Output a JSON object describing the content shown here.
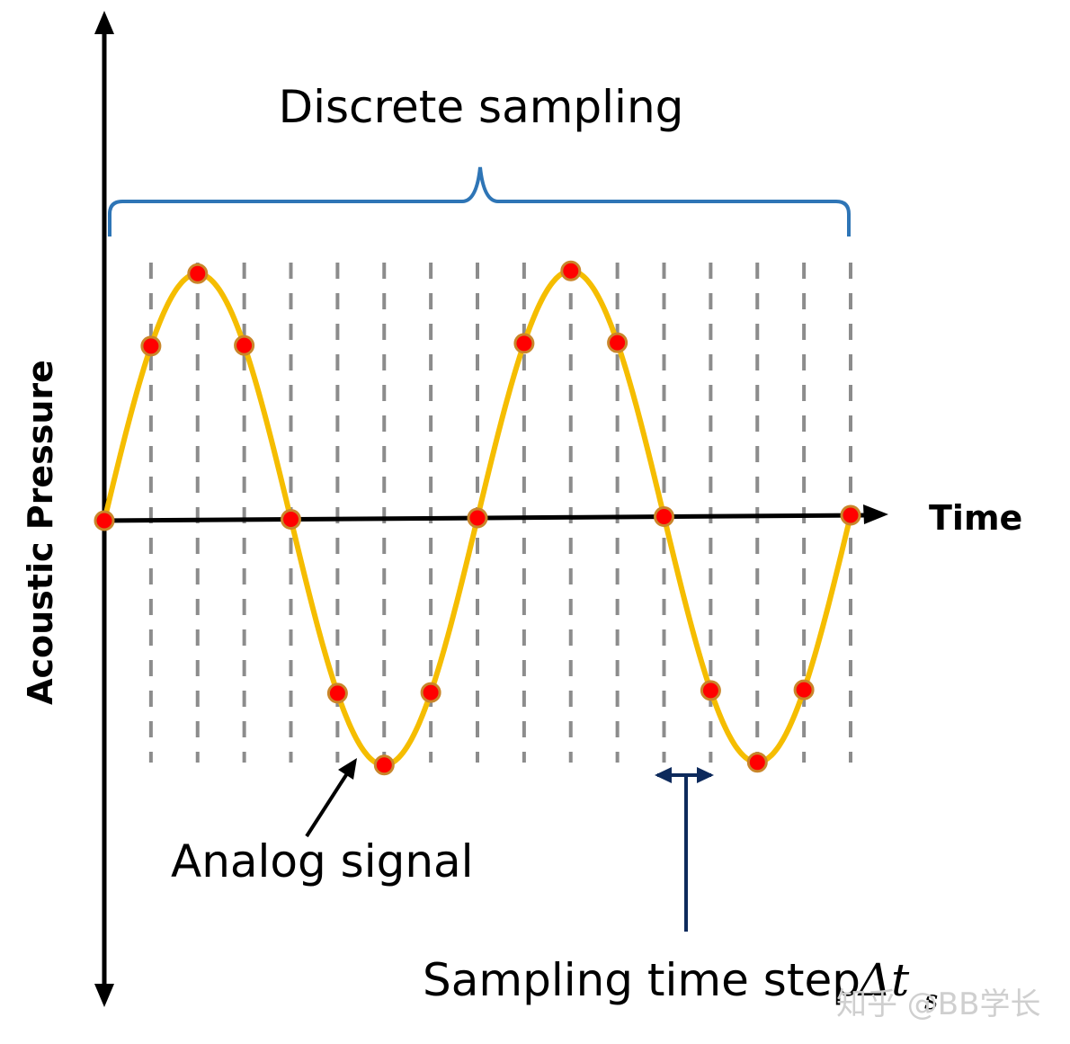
{
  "title": "Discrete sampling",
  "x_axis_label": "Time",
  "y_axis_label": "Acoustic Pressure",
  "analog_label": "Analog signal",
  "sampling_label": "Sampling time step",
  "sampling_symbol": "Δt",
  "sampling_symbol_subscript": "s",
  "watermark": "知乎 @BB学长",
  "colors": {
    "signal": "#f5bd00",
    "sample_fill": "#ff0000",
    "sample_stroke": "#c9862a",
    "grid": "#8c8c8c",
    "brace": "#2e75b6",
    "step_marker": "#0d2a5c",
    "axis": "#000000"
  },
  "signal": {
    "cycles": 2,
    "samples_per_cycle": 8
  }
}
